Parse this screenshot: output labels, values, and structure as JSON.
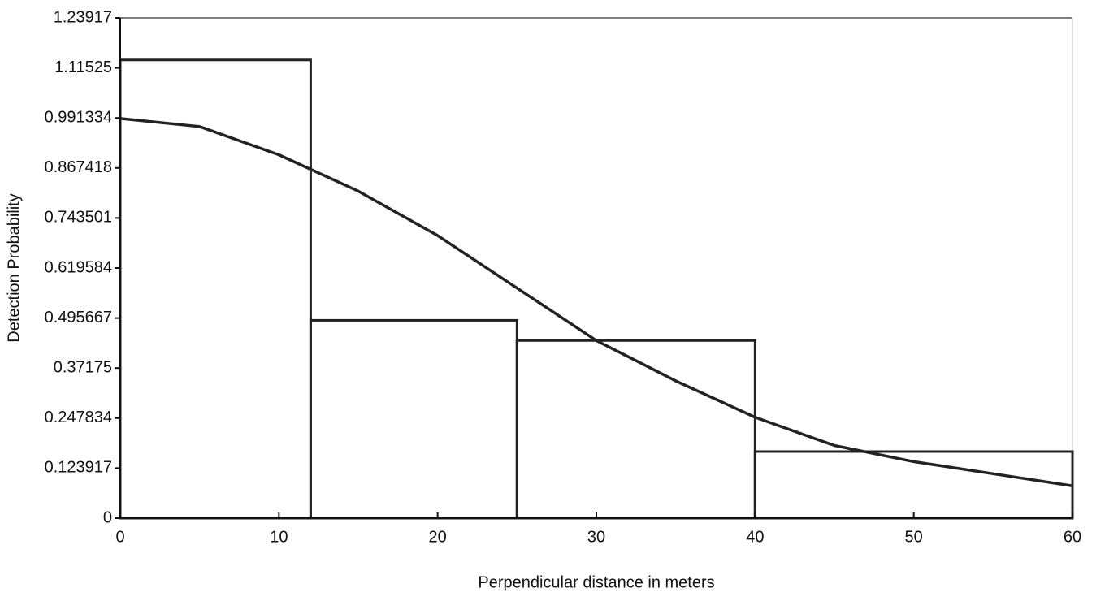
{
  "chart_data": {
    "type": "histogram",
    "x_label": "Perpendicular distance in meters",
    "y_label": "Detection Probability",
    "bins": [
      0,
      12,
      25,
      40,
      60
    ],
    "values": [
      1.135,
      0.49,
      0.44,
      0.165
    ],
    "color": "#222222",
    "line": {
      "x": [
        0,
        5,
        10,
        15,
        20,
        25,
        30,
        35,
        40,
        45,
        50,
        55,
        60
      ],
      "values": [
        0.99,
        0.97,
        0.9,
        0.81,
        0.7,
        0.57,
        0.44,
        0.34,
        0.25,
        0.18,
        0.14,
        0.11,
        0.08
      ],
      "color": "#222222"
    },
    "xlim": [
      0,
      60
    ],
    "xticks": [
      0,
      10,
      20,
      30,
      40,
      50,
      60
    ],
    "ylim": [
      0,
      1.23917
    ],
    "yticks": [
      0,
      0.123917,
      0.247834,
      0.37175,
      0.495667,
      0.619584,
      0.743501,
      0.867418,
      0.991334,
      1.11525,
      1.23917
    ],
    "grid": false
  }
}
